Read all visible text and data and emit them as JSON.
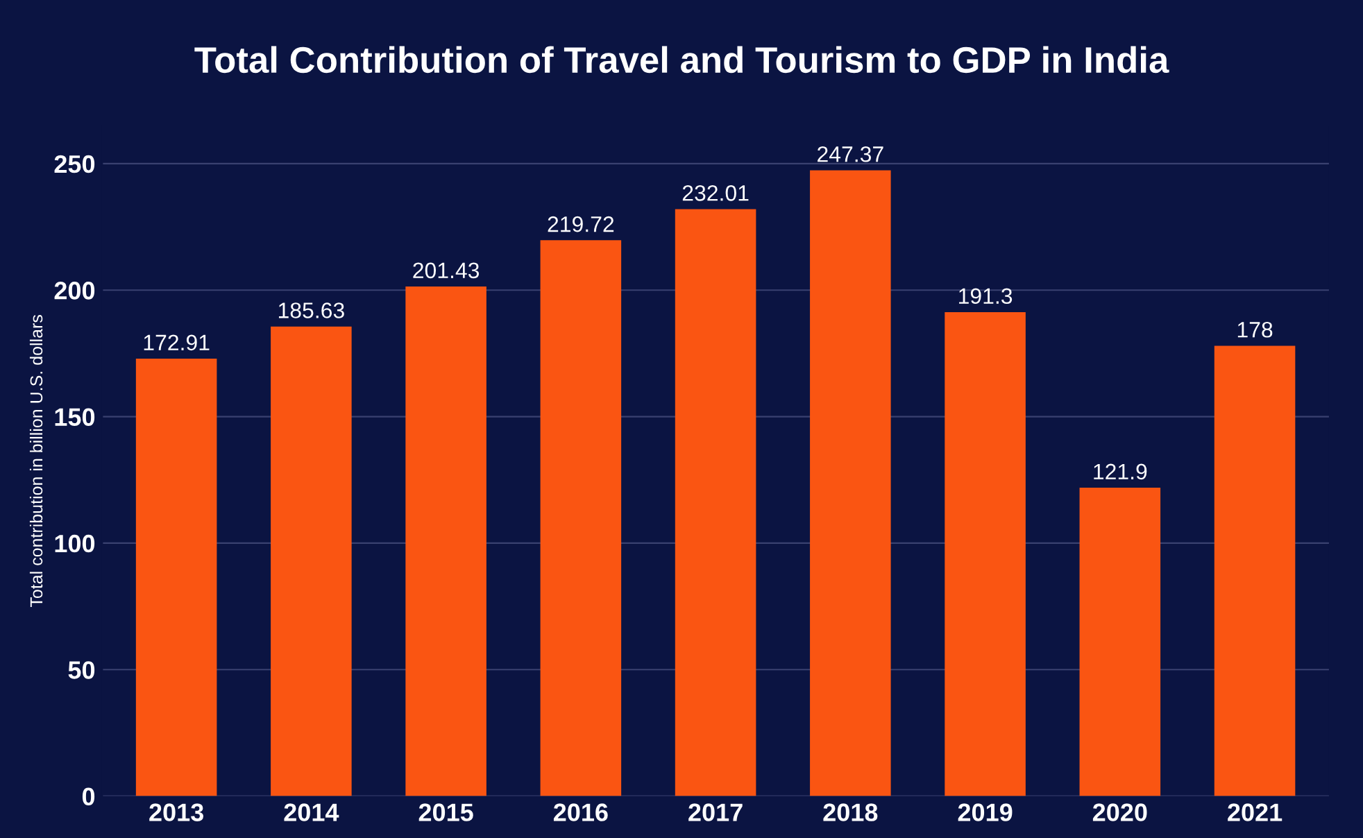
{
  "chart_data": {
    "type": "bar",
    "title": "Total Contribution of Travel and Tourism to GDP in India",
    "ylabel": "Total contribution in billion U.S. dollars",
    "categories": [
      "2013",
      "2014",
      "2015",
      "2016",
      "2017",
      "2018",
      "2019",
      "2020",
      "2021"
    ],
    "values": [
      172.91,
      185.63,
      201.43,
      219.72,
      232.01,
      247.37,
      191.3,
      121.9,
      178
    ],
    "color": "#fa5512",
    "ylim": [
      0,
      265
    ],
    "yticks": [
      0,
      50,
      100,
      150,
      200,
      250
    ],
    "grid": "y",
    "data_labels": true
  }
}
